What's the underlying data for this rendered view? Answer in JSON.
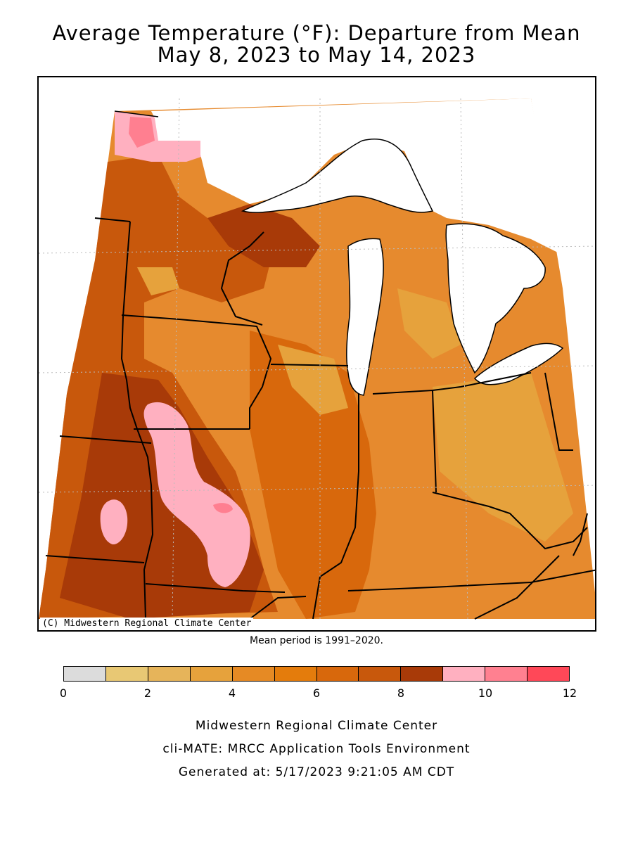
{
  "title_line1": "Average Temperature (°F): Departure from Mean",
  "title_line2": "May 8, 2023 to May 14, 2023",
  "map": {
    "credit": "(C) Midwestern Regional Climate Center",
    "colors": {
      "water": "#ffffff",
      "base": "#e68a2e",
      "light": "#e9a448",
      "mid": "#d2691e",
      "dark": "#b84c10",
      "darker": "#a23c08",
      "pink": "#ffb0c0",
      "hotpink": "#ff7f90"
    }
  },
  "mean_period": "Mean period is 1991–2020.",
  "legend": {
    "colors": [
      "#dcdcdc",
      "#e8c874",
      "#e6b45a",
      "#e6a23c",
      "#e68a24",
      "#e47c0c",
      "#d8680c",
      "#c8580c",
      "#a83a08",
      "#ffb0c0",
      "#ff8090",
      "#ff4858"
    ],
    "ticks": [
      "0",
      "2",
      "4",
      "6",
      "8",
      "10",
      "12"
    ]
  },
  "footer": {
    "org": "Midwestern Regional Climate Center",
    "tool": "cli-MATE: MRCC Application Tools Environment",
    "generated": "Generated at: 5/17/2023 9:21:05 AM CDT"
  }
}
